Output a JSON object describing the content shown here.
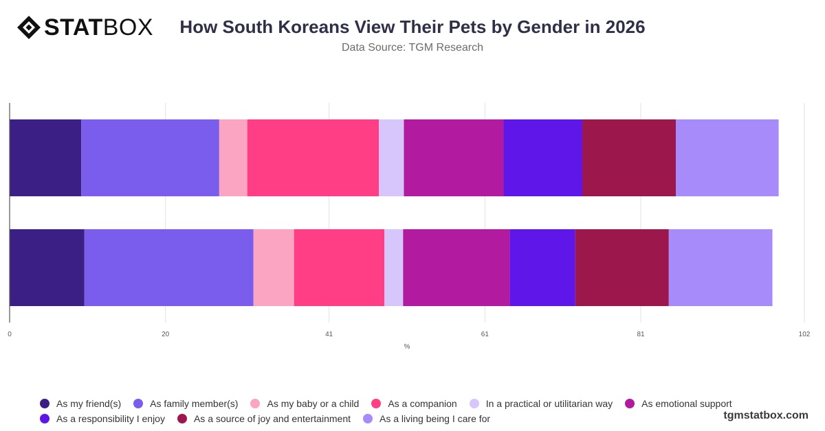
{
  "logo": {
    "text_bold": "STAT",
    "text_light": "BOX"
  },
  "header": {
    "title": "How South Koreans View Their Pets by Gender in 2026",
    "subtitle": "Data Source: TGM Research"
  },
  "footer": {
    "site": "tgmstatbox.com"
  },
  "chart_data": {
    "type": "bar",
    "orientation": "horizontal",
    "stacked": true,
    "title": "How South Koreans View Their Pets by Gender in 2026",
    "subtitle": "Data Source: TGM Research",
    "xlabel": "%",
    "ylabel": "",
    "xlim": [
      0,
      102
    ],
    "xticks": [
      0,
      20,
      41,
      61,
      81,
      102
    ],
    "grid": true,
    "legend_position": "bottom",
    "categories": [
      "",
      ""
    ],
    "series": [
      {
        "name": "As my friend(s)",
        "color": "#3b1f84",
        "values": [
          9.2,
          9.6
        ]
      },
      {
        "name": "As family member(s)",
        "color": "#7b5ded",
        "values": [
          17.7,
          21.7
        ]
      },
      {
        "name": "As my baby or a child",
        "color": "#fba5c2",
        "values": [
          3.6,
          5.2
        ]
      },
      {
        "name": "As a companion",
        "color": "#ff3e85",
        "values": [
          16.9,
          11.6
        ]
      },
      {
        "name": "In a practical or utilitarian way",
        "color": "#d7c6fc",
        "values": [
          3.2,
          2.4
        ]
      },
      {
        "name": "As emotional support",
        "color": "#b21aa0",
        "values": [
          12.8,
          13.7
        ]
      },
      {
        "name": "As a responsibility I enjoy",
        "color": "#5f16e8",
        "values": [
          10.1,
          8.4
        ]
      },
      {
        "name": "As a source of joy and entertainment",
        "color": "#9c184c",
        "values": [
          12.0,
          12.0
        ]
      },
      {
        "name": "As a living being I care for",
        "color": "#a78bfa",
        "values": [
          13.2,
          13.3
        ]
      }
    ]
  }
}
